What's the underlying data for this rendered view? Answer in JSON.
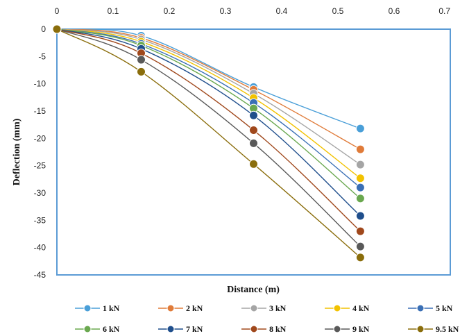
{
  "chart_data": {
    "type": "line",
    "title": "",
    "xlabel": "Distance (m)",
    "ylabel": "Deflection (mm)",
    "xlim": [
      0,
      0.7
    ],
    "ylim": [
      -45,
      0
    ],
    "x_ticks": [
      "0",
      "0.1",
      "0.2",
      "0.3",
      "0.4",
      "0.5",
      "0.6",
      "0.7"
    ],
    "y_ticks": [
      "0",
      "-5",
      "-10",
      "-15",
      "-20",
      "-25",
      "-30",
      "-35",
      "-40",
      "-45"
    ],
    "x_axis_position": "top",
    "grid": false,
    "legend_position": "bottom",
    "x": [
      0,
      0.15,
      0.35,
      0.54
    ],
    "series": [
      {
        "name": "1 kN",
        "color": "#4a9fd8",
        "values": [
          0,
          -1.2,
          -10.6,
          -18.2
        ]
      },
      {
        "name": "2 kN",
        "color": "#e07b39",
        "values": [
          0,
          -1.6,
          -11.1,
          -22.0
        ]
      },
      {
        "name": "3 kN",
        "color": "#a5a5a5",
        "values": [
          0,
          -1.9,
          -11.8,
          -24.8
        ]
      },
      {
        "name": "4 kN",
        "color": "#f2c200",
        "values": [
          0,
          -2.3,
          -12.6,
          -27.3
        ]
      },
      {
        "name": "5 kN",
        "color": "#3a6fb5",
        "values": [
          0,
          -2.7,
          -13.5,
          -29.0
        ]
      },
      {
        "name": "6 kN",
        "color": "#6aa84f",
        "values": [
          0,
          -3.0,
          -14.5,
          -31.0
        ]
      },
      {
        "name": "7 kN",
        "color": "#1f4e8c",
        "values": [
          0,
          -3.6,
          -15.8,
          -34.2
        ]
      },
      {
        "name": "8 kN",
        "color": "#a0481c",
        "values": [
          0,
          -4.4,
          -18.5,
          -37.0
        ]
      },
      {
        "name": "9 kN",
        "color": "#595959",
        "values": [
          0,
          -5.6,
          -20.9,
          -39.8
        ]
      },
      {
        "name": "9.5 kN",
        "color": "#8a6d0b",
        "values": [
          0,
          -7.8,
          -24.7,
          -41.8
        ]
      }
    ]
  }
}
